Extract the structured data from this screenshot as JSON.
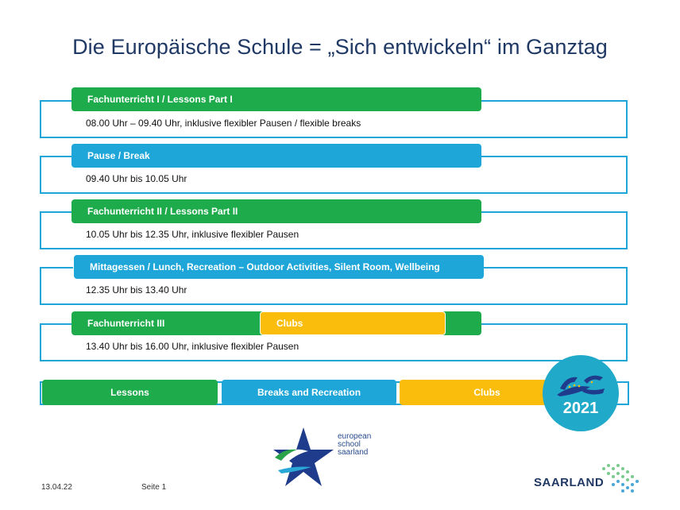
{
  "title": "Die Europäische Schule = „Sich entwickeln“ im Ganztag",
  "rows": [
    {
      "label": "Fachunterricht I / Lessons Part I",
      "time": "08.00 Uhr – 09.40 Uhr, inklusive flexibler Pausen / flexible breaks",
      "color": "#1eab4b"
    },
    {
      "label": "Pause / Break",
      "time": "09.40 Uhr bis 10.05 Uhr",
      "color": "#1ea6d9"
    },
    {
      "label": "Fachunterricht II / Lessons Part II",
      "time": "10.05 Uhr bis 12.35 Uhr, inklusive flexibler Pausen",
      "color": "#1eab4b"
    },
    {
      "label": "Mittagessen / Lunch, Recreation – Outdoor Activities, Silent Room, Wellbeing",
      "time": "12.35 Uhr bis 13.40 Uhr",
      "color": "#1ea6d9"
    },
    {
      "label": "Fachunterricht III",
      "label2": "Clubs",
      "time": "13.40 Uhr bis 16.00 Uhr, inklusive flexibler Pausen",
      "color": "#1eab4b",
      "color2": "#fbbd0b"
    }
  ],
  "legend": {
    "lessons": "Lessons",
    "breaks": "Breaks and Recreation",
    "clubs": "Clubs"
  },
  "badge": {
    "year": "2021",
    "logo_text": "ESS"
  },
  "footer": {
    "date": "13.04.22",
    "page": "Seite 1",
    "school_line1": "european",
    "school_line2": "school",
    "school_line3": "saarland",
    "saarland": "SAARLAND"
  },
  "colors": {
    "title": "#1f3864",
    "green": "#1eab4b",
    "blue": "#1ea6d9",
    "yellow": "#fbbd0b"
  }
}
